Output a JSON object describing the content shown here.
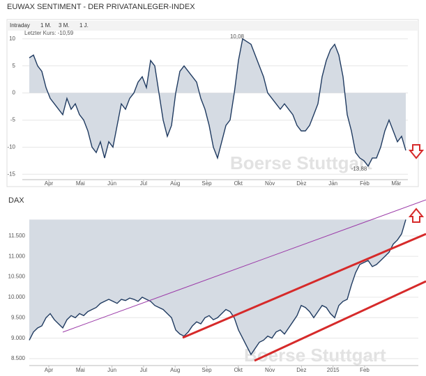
{
  "toolbar": {
    "tabs": [
      "Intraday",
      "1 M.",
      "3 M.",
      "1 J."
    ]
  },
  "chart_data": [
    {
      "type": "line",
      "title": "EUWAX SENTIMENT - DER PRIVATANLEGER-INDEX",
      "color": "#1f3a60",
      "fill": "#d5dbe3",
      "watermark": "Boerse Stuttgart",
      "annotations": [
        "Letzter Kurs: -10,59",
        "10,08",
        "-13,88"
      ],
      "xlabels": [
        "Apr",
        "Mai",
        "Jun",
        "Jul",
        "Aug",
        "Sep",
        "Okt",
        "Nov",
        "Dez",
        "Jan",
        "Feb",
        "Mär"
      ],
      "ylim": [
        -16,
        11
      ],
      "yticks": [
        10,
        5,
        0,
        -5,
        -10,
        -15
      ],
      "values": [
        6.5,
        7,
        5,
        4,
        1,
        -1,
        -2,
        -3,
        -4,
        -1,
        -3,
        -2,
        -4,
        -5,
        -7,
        -10,
        -11,
        -9,
        -12,
        -9,
        -10,
        -6,
        -2,
        -3,
        -1,
        0,
        2,
        3,
        1,
        6,
        5,
        0,
        -5,
        -8,
        -6,
        0,
        4,
        5,
        4,
        3,
        2,
        -1,
        -3,
        -6,
        -10,
        -12,
        -9,
        -6,
        -5,
        0,
        6,
        10,
        9.5,
        9,
        7,
        5,
        3,
        0,
        -1,
        -2,
        -3,
        -2,
        -3,
        -4,
        -6,
        -7,
        -7,
        -6,
        -4,
        -2,
        3,
        6,
        8,
        9,
        7,
        3,
        -4,
        -7,
        -11,
        -12,
        -12.5,
        -13.5,
        -12,
        -12,
        -10,
        -7,
        -5,
        -7,
        -9,
        -8,
        -10.6
      ]
    },
    {
      "type": "area",
      "title": "DAX",
      "color": "#1f3a60",
      "fill": "#d5dbe3",
      "watermark": "Boerse Stuttgart",
      "xlabels": [
        "Apr",
        "Mai",
        "Jun",
        "Jul",
        "Aug",
        "Sep",
        "Okt",
        "Nov",
        "Dez",
        "2015",
        "Feb"
      ],
      "ylim": [
        8330,
        12280
      ],
      "yticks": [
        {
          "value": 11500,
          "label": "11.500"
        },
        {
          "value": 11000,
          "label": "11.000"
        },
        {
          "value": 10500,
          "label": "10.500"
        },
        {
          "value": 10000,
          "label": "10.000"
        },
        {
          "value": 9500,
          "label": "9.500"
        },
        {
          "value": 9000,
          "label": "9.000"
        },
        {
          "value": 8500,
          "label": "8.500"
        }
      ],
      "values": [
        8950,
        9150,
        9250,
        9300,
        9500,
        9600,
        9450,
        9350,
        9250,
        9450,
        9550,
        9500,
        9600,
        9550,
        9650,
        9700,
        9750,
        9850,
        9900,
        9950,
        9900,
        9850,
        9950,
        9920,
        9980,
        9950,
        9900,
        10000,
        9950,
        9900,
        9800,
        9750,
        9700,
        9600,
        9500,
        9200,
        9100,
        9050,
        9150,
        9300,
        9400,
        9350,
        9500,
        9550,
        9450,
        9500,
        9600,
        9700,
        9650,
        9500,
        9200,
        9000,
        8800,
        8600,
        8750,
        8900,
        8950,
        9050,
        9000,
        9150,
        9200,
        9100,
        9250,
        9400,
        9550,
        9800,
        9750,
        9650,
        9500,
        9650,
        9800,
        9750,
        9600,
        9500,
        9800,
        9900,
        9950,
        10300,
        10600,
        10800,
        10850,
        10900,
        10750,
        10800,
        10900,
        11000,
        11100,
        11300,
        11400,
        11550,
        11900
      ]
    }
  ]
}
